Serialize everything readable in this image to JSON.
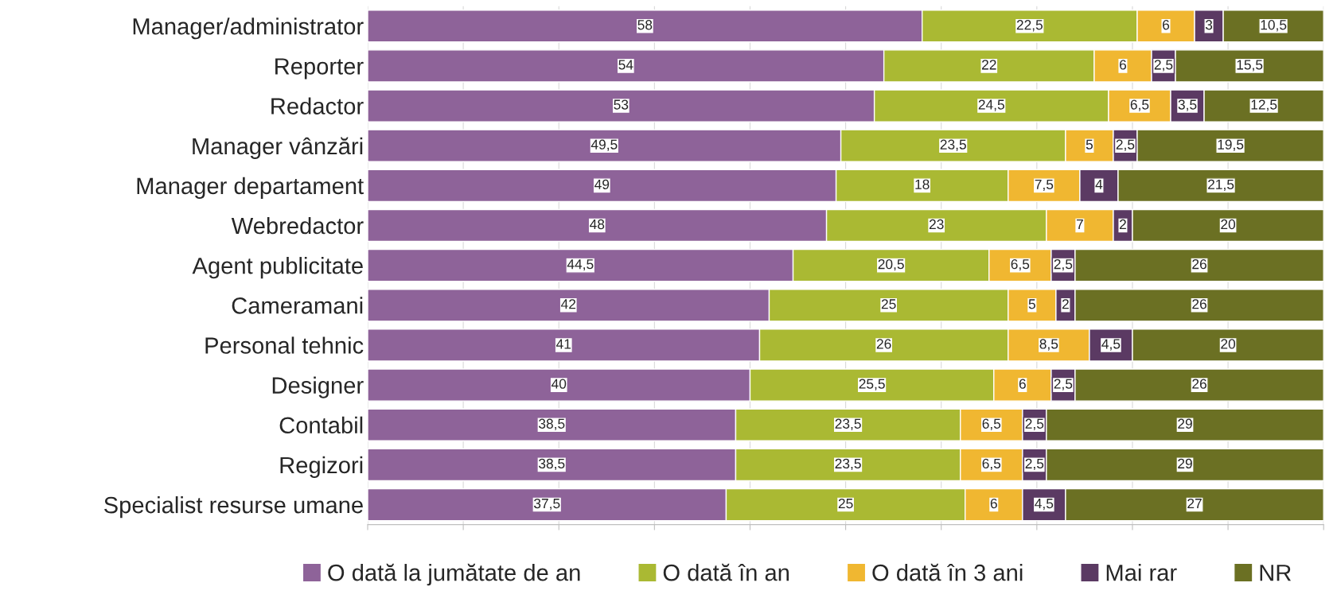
{
  "chart_data": {
    "type": "bar",
    "orientation": "horizontal",
    "stacked": true,
    "categories": [
      "Manager/administrator",
      "Reporter",
      "Redactor",
      "Manager vânzări",
      "Manager departament",
      "Webredactor",
      "Agent publicitate",
      "Cameramani",
      "Personal tehnic",
      "Designer",
      "Contabil",
      "Regizori",
      "Specialist resurse umane"
    ],
    "series": [
      {
        "name": "O dată la jumătate de an",
        "color": "#8e6399",
        "values": [
          58,
          54,
          53,
          49.5,
          49,
          48,
          44.5,
          42,
          41,
          40,
          38.5,
          38.5,
          37.5
        ],
        "value_labels": [
          "58",
          "54",
          "53",
          "49,5",
          "49",
          "48",
          "44,5",
          "42",
          "41",
          "40",
          "38,5",
          "38,5",
          "37,5"
        ]
      },
      {
        "name": "O dată în an",
        "color": "#aab933",
        "values": [
          22.5,
          22,
          24.5,
          23.5,
          18,
          23,
          20.5,
          25,
          26,
          25.5,
          23.5,
          23.5,
          25
        ],
        "value_labels": [
          "22,5",
          "22",
          "24,5",
          "23,5",
          "18",
          "23",
          "20,5",
          "25",
          "26",
          "25,5",
          "23,5",
          "23,5",
          "25"
        ]
      },
      {
        "name": "O dată în 3 ani",
        "color": "#f0b731",
        "values": [
          6,
          6,
          6.5,
          5,
          7.5,
          7,
          6.5,
          5,
          8.5,
          6,
          6.5,
          6.5,
          6
        ],
        "value_labels": [
          "6",
          "6",
          "6,5",
          "5",
          "7,5",
          "7",
          "6,5",
          "5",
          "8,5",
          "6",
          "6,5",
          "6,5",
          "6"
        ]
      },
      {
        "name": "Mai rar",
        "color": "#5b3a63",
        "values": [
          3,
          2.5,
          3.5,
          2.5,
          4,
          2,
          2.5,
          2,
          4.5,
          2.5,
          2.5,
          2.5,
          4.5
        ],
        "value_labels": [
          "3",
          "2,5",
          "3,5",
          "2,5",
          "4",
          "2",
          "2,5",
          "2",
          "4,5",
          "2,5",
          "2,5",
          "2,5",
          "4,5"
        ]
      },
      {
        "name": "NR",
        "color": "#6b7023",
        "values": [
          10.5,
          15.5,
          12.5,
          19.5,
          21.5,
          20,
          26,
          26,
          20,
          26,
          29,
          29,
          27
        ],
        "value_labels": [
          "10,5",
          "15,5",
          "12,5",
          "19,5",
          "21,5",
          "20",
          "26",
          "26",
          "20",
          "26",
          "29",
          "29",
          "27"
        ]
      }
    ],
    "xlim": [
      0,
      100
    ],
    "xticks": [
      {
        "value": 0,
        "label": null
      },
      {
        "value": 10,
        "label": null
      },
      {
        "value": 20,
        "label": null
      },
      {
        "value": 30,
        "label": null
      },
      {
        "value": 40,
        "label": null
      },
      {
        "value": 50,
        "label": null
      },
      {
        "value": 60,
        "label": null
      },
      {
        "value": 70,
        "label": null
      },
      {
        "value": 80,
        "label": null
      },
      {
        "value": 90,
        "label": null
      },
      {
        "value": 100,
        "label": null
      }
    ],
    "grid": "x",
    "legend": "bottom",
    "tick_labels": "y"
  }
}
